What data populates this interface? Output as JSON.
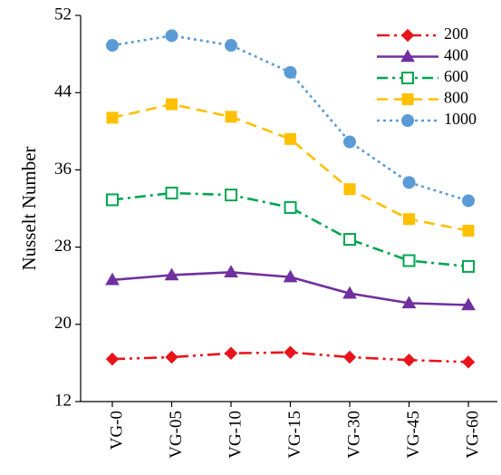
{
  "chart_data": {
    "type": "line",
    "title": "",
    "xlabel": "",
    "ylabel": "Nusselt Number",
    "categories": [
      "VG-0",
      "VG-05",
      "VG-10",
      "VG-15",
      "VG-30",
      "VG-45",
      "VG-60"
    ],
    "ylim": [
      12,
      52
    ],
    "yticks": [
      12,
      20,
      28,
      36,
      44,
      52
    ],
    "grid": false,
    "legend_position": "top-right",
    "series": [
      {
        "name": "200",
        "values": [
          16.4,
          16.6,
          17.0,
          17.1,
          16.6,
          16.3,
          16.1
        ],
        "color": "#e8141b",
        "marker": "diamond",
        "filled": true,
        "dash": "long-dash-dot-dot"
      },
      {
        "name": "400",
        "values": [
          24.6,
          25.1,
          25.4,
          24.9,
          23.2,
          22.2,
          22.0
        ],
        "color": "#7030a0",
        "marker": "triangle",
        "filled": true,
        "dash": "solid"
      },
      {
        "name": "600",
        "values": [
          32.9,
          33.6,
          33.4,
          32.1,
          28.8,
          26.6,
          26.0
        ],
        "color": "#00a651",
        "marker": "square",
        "filled": false,
        "dash": "dash-dot"
      },
      {
        "name": "800",
        "values": [
          41.4,
          42.8,
          41.5,
          39.2,
          34.0,
          30.9,
          29.7
        ],
        "color": "#ffc000",
        "marker": "square",
        "filled": true,
        "dash": "dash"
      },
      {
        "name": "1000",
        "values": [
          48.9,
          49.9,
          48.9,
          46.1,
          38.9,
          34.7,
          32.8
        ],
        "color": "#5b9bd5",
        "marker": "circle",
        "filled": true,
        "dash": "dot"
      }
    ]
  }
}
